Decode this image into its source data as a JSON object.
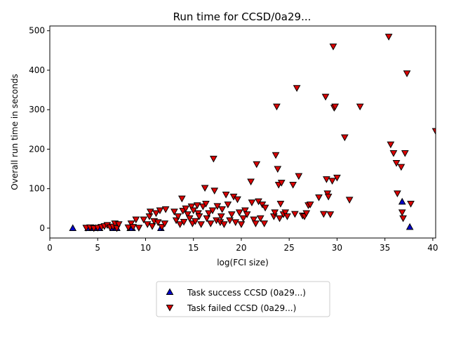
{
  "chart_data": {
    "type": "scatter",
    "title": "Run time for CCSD/0a29...",
    "xlabel": "log(FCI size)",
    "ylabel": "Overall run time in seconds",
    "xlim": [
      0,
      40.3
    ],
    "ylim": [
      -25,
      512
    ],
    "xticks": [
      0,
      5,
      10,
      15,
      20,
      25,
      30,
      35,
      40
    ],
    "yticks": [
      0,
      100,
      200,
      300,
      400,
      500
    ],
    "grid": false,
    "legend_position": "below-center",
    "series": [
      {
        "name": "Task success CCSD (0a29...)",
        "marker": "triangle-up",
        "color": "#0000cc",
        "points": [
          [
            2.4,
            0
          ],
          [
            4.0,
            0
          ],
          [
            4.4,
            0
          ],
          [
            4.6,
            0
          ],
          [
            4.8,
            0
          ],
          [
            5.0,
            0
          ],
          [
            5.2,
            0
          ],
          [
            6.6,
            0
          ],
          [
            7.0,
            0
          ],
          [
            8.4,
            0
          ],
          [
            8.6,
            0
          ],
          [
            11.6,
            0
          ],
          [
            36.8,
            67
          ],
          [
            37.6,
            3
          ]
        ]
      },
      {
        "name": "Task failed CCSD (0a29...)",
        "marker": "triangle-down",
        "color": "#dd0000",
        "points": [
          [
            3.8,
            1
          ],
          [
            4.2,
            2
          ],
          [
            4.6,
            0
          ],
          [
            5.0,
            1
          ],
          [
            5.4,
            3
          ],
          [
            5.7,
            5
          ],
          [
            6.0,
            8
          ],
          [
            6.3,
            2
          ],
          [
            6.6,
            4
          ],
          [
            6.8,
            12
          ],
          [
            7.0,
            0
          ],
          [
            7.2,
            10
          ],
          [
            8.2,
            2
          ],
          [
            8.5,
            12
          ],
          [
            8.7,
            3
          ],
          [
            9.0,
            22
          ],
          [
            9.3,
            1
          ],
          [
            9.8,
            22
          ],
          [
            10.2,
            10
          ],
          [
            10.4,
            30
          ],
          [
            10.5,
            42
          ],
          [
            10.7,
            5
          ],
          [
            10.9,
            18
          ],
          [
            11.1,
            38
          ],
          [
            11.3,
            15
          ],
          [
            11.5,
            45
          ],
          [
            11.7,
            3
          ],
          [
            12.0,
            12
          ],
          [
            12.1,
            48
          ],
          [
            13.0,
            42
          ],
          [
            13.2,
            20
          ],
          [
            13.4,
            30
          ],
          [
            13.6,
            10
          ],
          [
            13.8,
            75
          ],
          [
            13.9,
            44
          ],
          [
            14.0,
            16
          ],
          [
            14.2,
            50
          ],
          [
            14.4,
            35
          ],
          [
            14.6,
            25
          ],
          [
            14.8,
            55
          ],
          [
            14.9,
            12
          ],
          [
            15.0,
            45
          ],
          [
            15.2,
            18
          ],
          [
            15.4,
            58
          ],
          [
            15.5,
            38
          ],
          [
            15.6,
            30
          ],
          [
            15.8,
            10
          ],
          [
            16.0,
            55
          ],
          [
            16.2,
            102
          ],
          [
            16.3,
            62
          ],
          [
            16.4,
            25
          ],
          [
            16.6,
            38
          ],
          [
            16.8,
            12
          ],
          [
            17.0,
            45
          ],
          [
            17.1,
            176
          ],
          [
            17.2,
            95
          ],
          [
            17.4,
            20
          ],
          [
            17.5,
            56
          ],
          [
            17.8,
            15
          ],
          [
            17.9,
            30
          ],
          [
            18.0,
            48
          ],
          [
            18.2,
            10
          ],
          [
            18.4,
            85
          ],
          [
            18.6,
            60
          ],
          [
            18.8,
            20
          ],
          [
            19.0,
            35
          ],
          [
            19.2,
            80
          ],
          [
            19.4,
            15
          ],
          [
            19.6,
            73
          ],
          [
            19.8,
            40
          ],
          [
            20.0,
            10
          ],
          [
            20.2,
            25
          ],
          [
            20.4,
            45
          ],
          [
            20.6,
            35
          ],
          [
            21.0,
            118
          ],
          [
            21.1,
            65
          ],
          [
            21.3,
            22
          ],
          [
            21.5,
            12
          ],
          [
            21.6,
            162
          ],
          [
            21.8,
            68
          ],
          [
            22.0,
            25
          ],
          [
            22.2,
            60
          ],
          [
            22.4,
            12
          ],
          [
            22.5,
            52
          ],
          [
            23.4,
            30
          ],
          [
            23.5,
            40
          ],
          [
            23.6,
            185
          ],
          [
            23.7,
            308
          ],
          [
            23.8,
            150
          ],
          [
            23.9,
            110
          ],
          [
            24.0,
            25
          ],
          [
            24.1,
            62
          ],
          [
            24.2,
            115
          ],
          [
            24.4,
            35
          ],
          [
            24.6,
            40
          ],
          [
            24.8,
            30
          ],
          [
            25.4,
            110
          ],
          [
            25.6,
            36
          ],
          [
            25.8,
            355
          ],
          [
            26.0,
            132
          ],
          [
            26.4,
            32
          ],
          [
            26.6,
            30
          ],
          [
            26.8,
            38
          ],
          [
            27.0,
            58
          ],
          [
            27.2,
            60
          ],
          [
            28.1,
            78
          ],
          [
            28.6,
            36
          ],
          [
            28.8,
            333
          ],
          [
            28.9,
            124
          ],
          [
            29.0,
            88
          ],
          [
            29.1,
            80
          ],
          [
            29.3,
            35
          ],
          [
            29.5,
            120
          ],
          [
            29.6,
            460
          ],
          [
            29.7,
            305
          ],
          [
            29.8,
            308
          ],
          [
            30.0,
            128
          ],
          [
            30.8,
            230
          ],
          [
            31.3,
            72
          ],
          [
            32.4,
            308
          ],
          [
            35.4,
            485
          ],
          [
            35.6,
            212
          ],
          [
            35.9,
            190
          ],
          [
            36.2,
            165
          ],
          [
            36.3,
            88
          ],
          [
            36.7,
            155
          ],
          [
            36.8,
            40
          ],
          [
            36.9,
            25
          ],
          [
            37.1,
            190
          ],
          [
            37.3,
            392
          ],
          [
            37.7,
            62
          ],
          [
            40.3,
            246
          ]
        ]
      }
    ]
  }
}
